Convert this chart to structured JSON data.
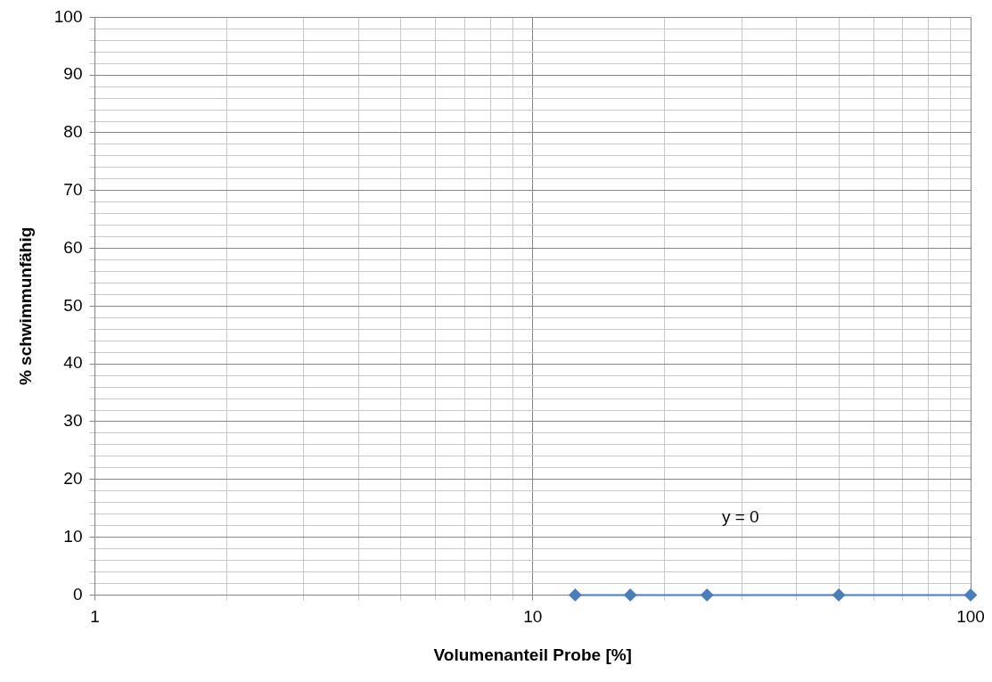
{
  "chart_data": {
    "type": "scatter",
    "xlabel": "Volumenanteil Probe [%]",
    "ylabel": "% schwimmunfähig",
    "series": [
      {
        "color": "#4a7ebb",
        "x": [
          12.5,
          16.7,
          25,
          50,
          100
        ],
        "values": [
          0,
          0,
          0,
          0,
          0
        ],
        "marker": "diamond"
      },
      {
        "type": "line",
        "color": "#4a7ebb",
        "x": [
          12.5,
          100
        ],
        "values": [
          0,
          0
        ],
        "marker": "none",
        "line_style": "solid"
      }
    ],
    "log": "x",
    "xlim": [
      1,
      100
    ],
    "ylim": [
      0,
      100
    ],
    "xticks": [
      1,
      {
        "value": 2,
        "label": null
      },
      {
        "value": 3,
        "label": null
      },
      {
        "value": 4,
        "label": null
      },
      {
        "value": 5,
        "label": null
      },
      {
        "value": 6,
        "label": null
      },
      {
        "value": 7,
        "label": null
      },
      {
        "value": 8,
        "label": null
      },
      {
        "value": 9,
        "label": null
      },
      10,
      {
        "value": 20,
        "label": null
      },
      {
        "value": 30,
        "label": null
      },
      {
        "value": 40,
        "label": null
      },
      {
        "value": 50,
        "label": null
      },
      {
        "value": 60,
        "label": null
      },
      {
        "value": 70,
        "label": null
      },
      {
        "value": 80,
        "label": null
      },
      {
        "value": 90,
        "label": null
      },
      100
    ],
    "yticks": [
      0,
      {
        "value": 2,
        "label": null
      },
      {
        "value": 4,
        "label": null
      },
      {
        "value": 6,
        "label": null
      },
      {
        "value": 8,
        "label": null
      },
      10,
      {
        "value": 12,
        "label": null
      },
      {
        "value": 14,
        "label": null
      },
      {
        "value": 16,
        "label": null
      },
      {
        "value": 18,
        "label": null
      },
      20,
      {
        "value": 22,
        "label": null
      },
      {
        "value": 24,
        "label": null
      },
      {
        "value": 26,
        "label": null
      },
      {
        "value": 28,
        "label": null
      },
      30,
      {
        "value": 32,
        "label": null
      },
      {
        "value": 34,
        "label": null
      },
      {
        "value": 36,
        "label": null
      },
      {
        "value": 38,
        "label": null
      },
      40,
      {
        "value": 42,
        "label": null
      },
      {
        "value": 44,
        "label": null
      },
      {
        "value": 46,
        "label": null
      },
      {
        "value": 48,
        "label": null
      },
      50,
      {
        "value": 52,
        "label": null
      },
      {
        "value": 54,
        "label": null
      },
      {
        "value": 56,
        "label": null
      },
      {
        "value": 58,
        "label": null
      },
      60,
      {
        "value": 62,
        "label": null
      },
      {
        "value": 64,
        "label": null
      },
      {
        "value": 66,
        "label": null
      },
      {
        "value": 68,
        "label": null
      },
      70,
      {
        "value": 72,
        "label": null
      },
      {
        "value": 74,
        "label": null
      },
      {
        "value": 76,
        "label": null
      },
      {
        "value": 78,
        "label": null
      },
      80,
      {
        "value": 82,
        "label": null
      },
      {
        "value": 84,
        "label": null
      },
      {
        "value": 86,
        "label": null
      },
      {
        "value": 88,
        "label": null
      },
      90,
      {
        "value": 92,
        "label": null
      },
      {
        "value": 94,
        "label": null
      },
      {
        "value": 96,
        "label": null
      },
      {
        "value": 98,
        "label": null
      },
      100
    ],
    "grid": true,
    "legend": false,
    "annotations": [
      "y = 0"
    ]
  }
}
